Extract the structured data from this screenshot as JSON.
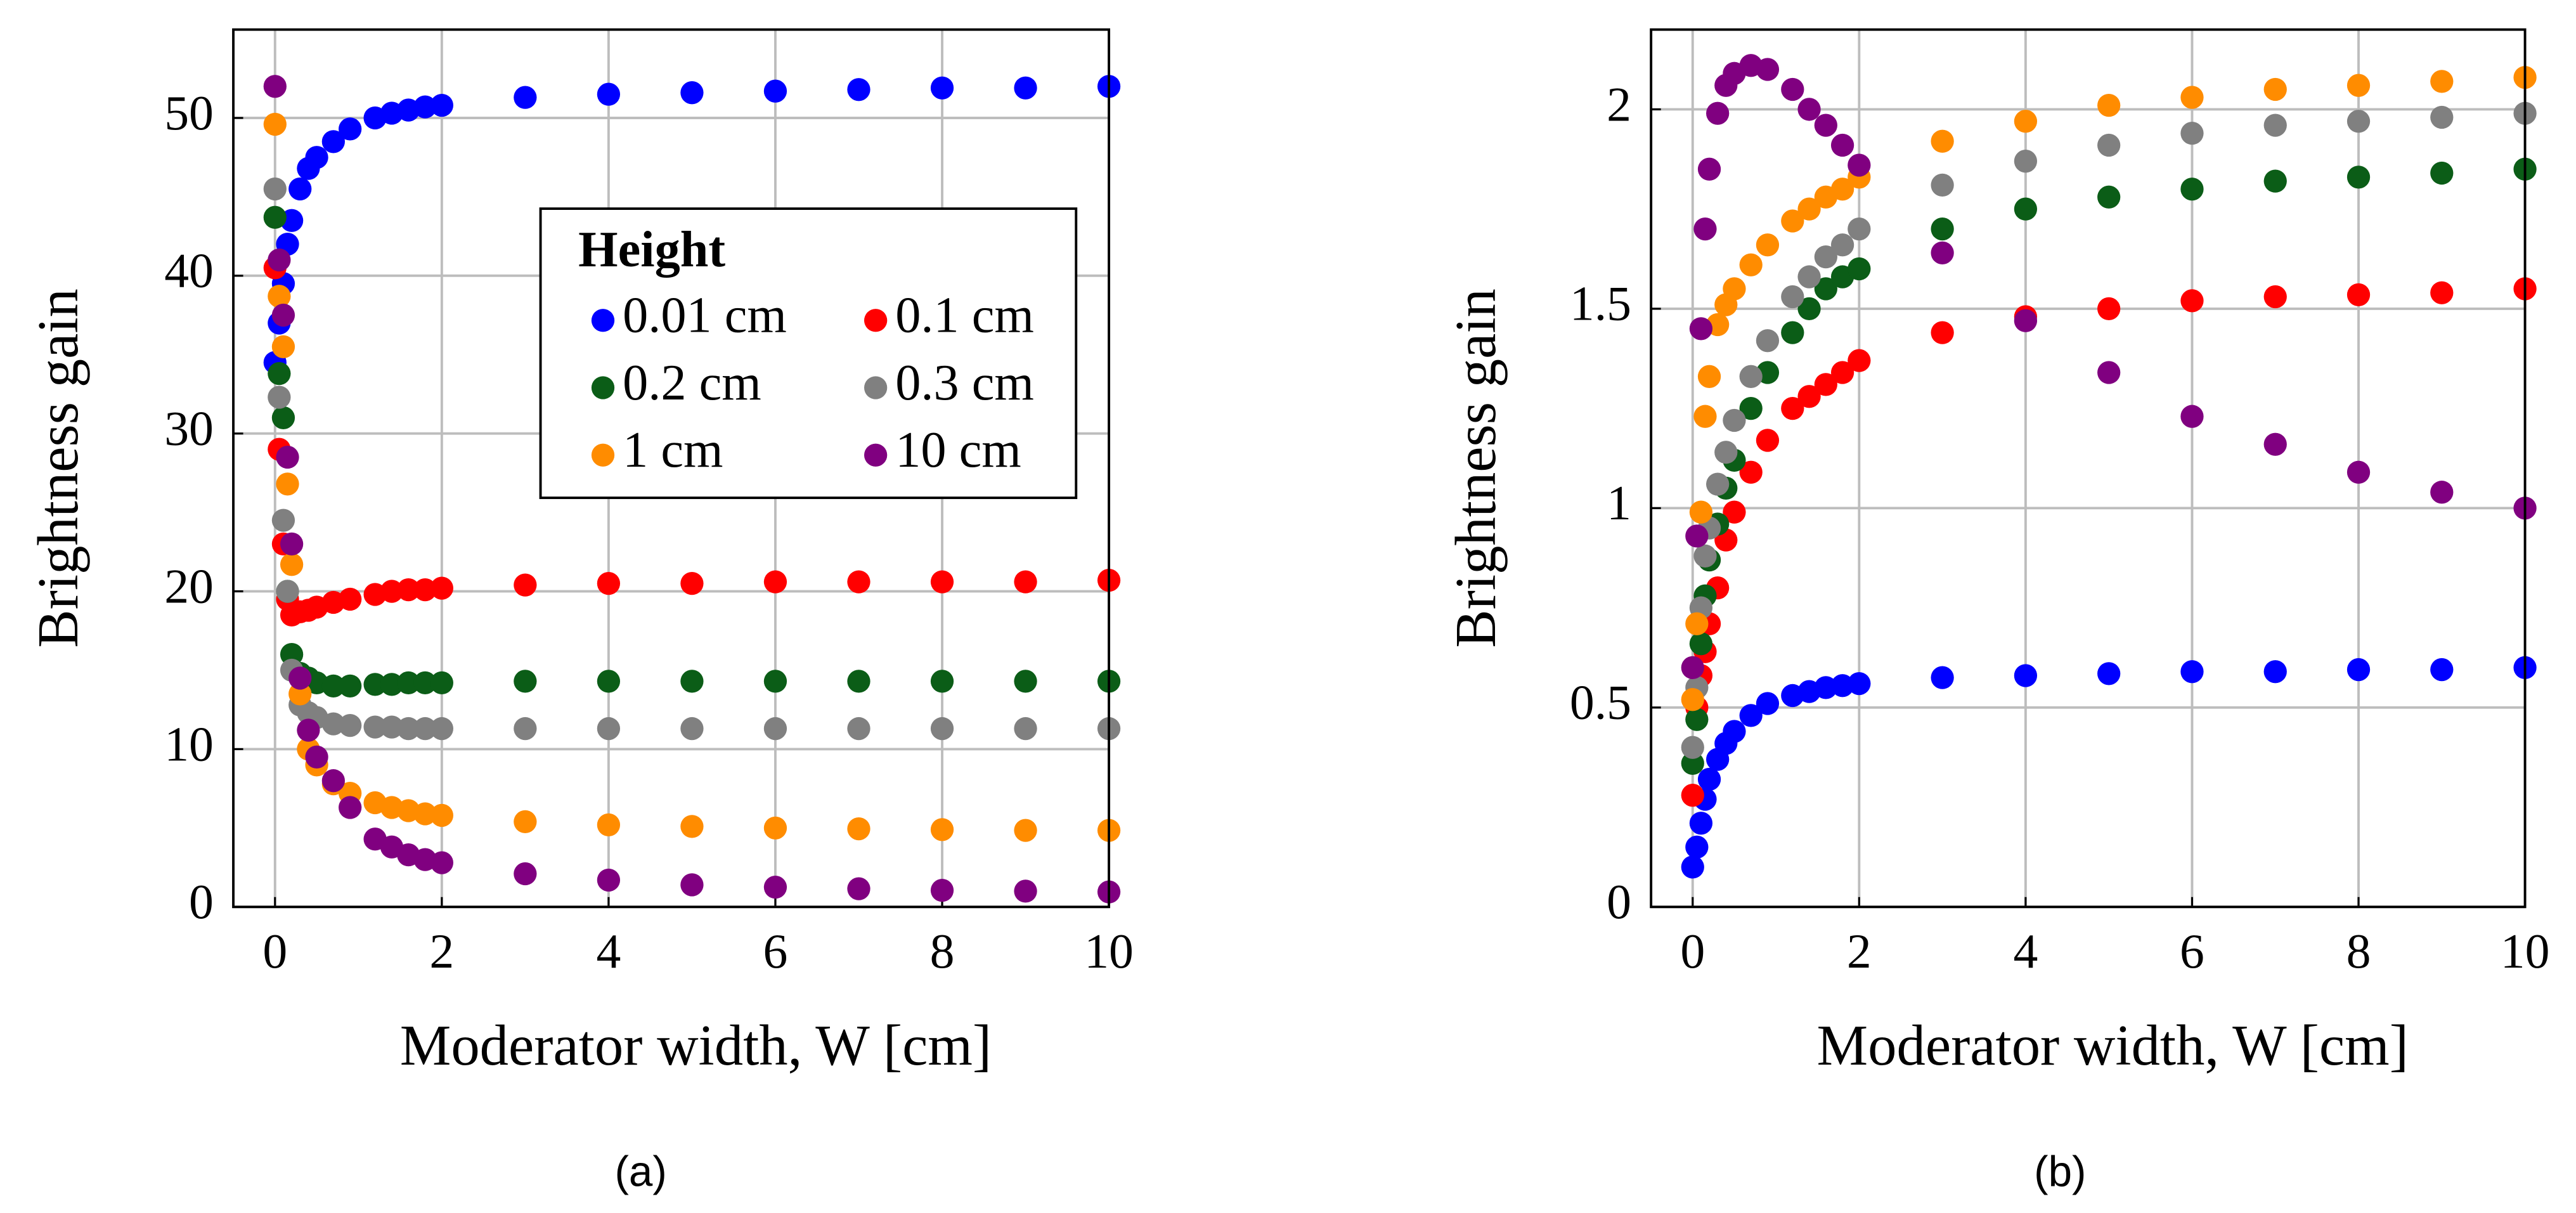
{
  "chart_data": [
    {
      "type": "scatter",
      "caption": "(a)",
      "xlabel": "Moderator width, W [cm]",
      "ylabel": "Brightness gain",
      "x": [
        0,
        0.05,
        0.1,
        0.15,
        0.2,
        0.3,
        0.4,
        0.5,
        0.7,
        0.9,
        1.2,
        1.4,
        1.6,
        1.8,
        2,
        3,
        4,
        5,
        6,
        7,
        8,
        9,
        10
      ],
      "xlim": [
        -0.5,
        10
      ],
      "xticks": [
        0,
        2,
        4,
        6,
        8,
        10
      ],
      "ylim": [
        0,
        55.6
      ],
      "yticks": [
        0,
        10,
        20,
        30,
        40,
        50
      ],
      "grid": true,
      "legend_title": "Height",
      "legend": "upper right",
      "series": [
        {
          "name": "0.01 cm",
          "color": "#0000ff",
          "values": [
            34.5,
            37,
            39.5,
            42,
            43.5,
            45.5,
            46.8,
            47.5,
            48.5,
            49.3,
            50,
            50.3,
            50.5,
            50.7,
            50.8,
            51.3,
            51.5,
            51.6,
            51.7,
            51.8,
            51.9,
            51.9,
            52
          ]
        },
        {
          "name": "0.1 cm",
          "color": "#ff0000",
          "values": [
            40.5,
            29,
            23,
            19.5,
            18.5,
            18.7,
            18.8,
            19,
            19.3,
            19.5,
            19.8,
            20,
            20.1,
            20.1,
            20.2,
            20.4,
            20.5,
            20.5,
            20.6,
            20.6,
            20.6,
            20.6,
            20.7
          ]
        },
        {
          "name": "0.2 cm",
          "color": "#0b5d17",
          "values": [
            43.7,
            33.8,
            31,
            20,
            16,
            14.8,
            14.5,
            14.2,
            14,
            14,
            14.1,
            14.1,
            14.2,
            14.2,
            14.2,
            14.3,
            14.3,
            14.3,
            14.3,
            14.3,
            14.3,
            14.3,
            14.3
          ]
        },
        {
          "name": "0.3 cm",
          "color": "#808080",
          "values": [
            45.5,
            32.3,
            24.5,
            20,
            15,
            12.8,
            12.3,
            12,
            11.6,
            11.5,
            11.4,
            11.4,
            11.3,
            11.3,
            11.3,
            11.3,
            11.3,
            11.3,
            11.3,
            11.3,
            11.3,
            11.3,
            11.3
          ]
        },
        {
          "name": "1 cm",
          "color": "#ff8c00",
          "values": [
            49.6,
            38.7,
            35.5,
            26.8,
            21.7,
            13.5,
            10,
            9,
            7.8,
            7.2,
            6.6,
            6.3,
            6.1,
            5.9,
            5.8,
            5.4,
            5.2,
            5.1,
            5.0,
            4.95,
            4.9,
            4.85,
            4.85
          ]
        },
        {
          "name": "10 cm",
          "color": "#800080",
          "values": [
            52,
            41,
            37.5,
            28.5,
            23,
            14.5,
            11.2,
            9.5,
            8,
            6.3,
            4.3,
            3.8,
            3.3,
            3,
            2.8,
            2.1,
            1.7,
            1.4,
            1.25,
            1.15,
            1.05,
            1.0,
            0.95
          ]
        }
      ]
    },
    {
      "type": "scatter",
      "caption": "(b)",
      "xlabel": "Moderator width, W [cm]",
      "ylabel": "Brightness gain",
      "x": [
        0,
        0.05,
        0.1,
        0.15,
        0.2,
        0.3,
        0.4,
        0.5,
        0.7,
        0.9,
        1.2,
        1.4,
        1.6,
        1.8,
        2,
        3,
        4,
        5,
        6,
        7,
        8,
        9,
        10
      ],
      "xlim": [
        -0.5,
        10
      ],
      "xticks": [
        0,
        2,
        4,
        6,
        8,
        10
      ],
      "ylim": [
        0,
        2.2
      ],
      "yticks": [
        0,
        0.5,
        1,
        1.5,
        2
      ],
      "grid": true,
      "series": [
        {
          "color": "#0000ff",
          "values": [
            0.1,
            0.15,
            0.21,
            0.27,
            0.32,
            0.37,
            0.41,
            0.44,
            0.48,
            0.51,
            0.53,
            0.54,
            0.55,
            0.555,
            0.56,
            0.575,
            0.58,
            0.585,
            0.59,
            0.59,
            0.595,
            0.595,
            0.6
          ]
        },
        {
          "color": "#ff0000",
          "values": [
            0.28,
            0.5,
            0.58,
            0.64,
            0.71,
            0.8,
            0.92,
            0.99,
            1.09,
            1.17,
            1.25,
            1.28,
            1.31,
            1.34,
            1.37,
            1.44,
            1.48,
            1.5,
            1.52,
            1.53,
            1.535,
            1.54,
            1.55
          ]
        },
        {
          "color": "#0b5d17",
          "values": [
            0.36,
            0.47,
            0.66,
            0.78,
            0.87,
            0.96,
            1.05,
            1.12,
            1.25,
            1.34,
            1.44,
            1.5,
            1.55,
            1.58,
            1.6,
            1.7,
            1.75,
            1.78,
            1.8,
            1.82,
            1.83,
            1.84,
            1.85
          ]
        },
        {
          "color": "#808080",
          "values": [
            0.4,
            0.55,
            0.75,
            0.88,
            0.95,
            1.06,
            1.14,
            1.22,
            1.33,
            1.42,
            1.53,
            1.58,
            1.63,
            1.66,
            1.7,
            1.81,
            1.87,
            1.91,
            1.94,
            1.96,
            1.97,
            1.98,
            1.99
          ]
        },
        {
          "color": "#ff8c00",
          "values": [
            0.52,
            0.71,
            0.99,
            1.23,
            1.33,
            1.46,
            1.51,
            1.55,
            1.61,
            1.66,
            1.72,
            1.75,
            1.78,
            1.8,
            1.83,
            1.92,
            1.97,
            2.01,
            2.03,
            2.05,
            2.06,
            2.07,
            2.08
          ]
        },
        {
          "color": "#800080",
          "values": [
            0.6,
            0.93,
            1.45,
            1.7,
            1.85,
            1.99,
            2.06,
            2.09,
            2.11,
            2.1,
            2.05,
            2.0,
            1.96,
            1.91,
            1.86,
            1.64,
            1.47,
            1.34,
            1.23,
            1.16,
            1.09,
            1.04,
            1.0
          ]
        }
      ]
    }
  ]
}
